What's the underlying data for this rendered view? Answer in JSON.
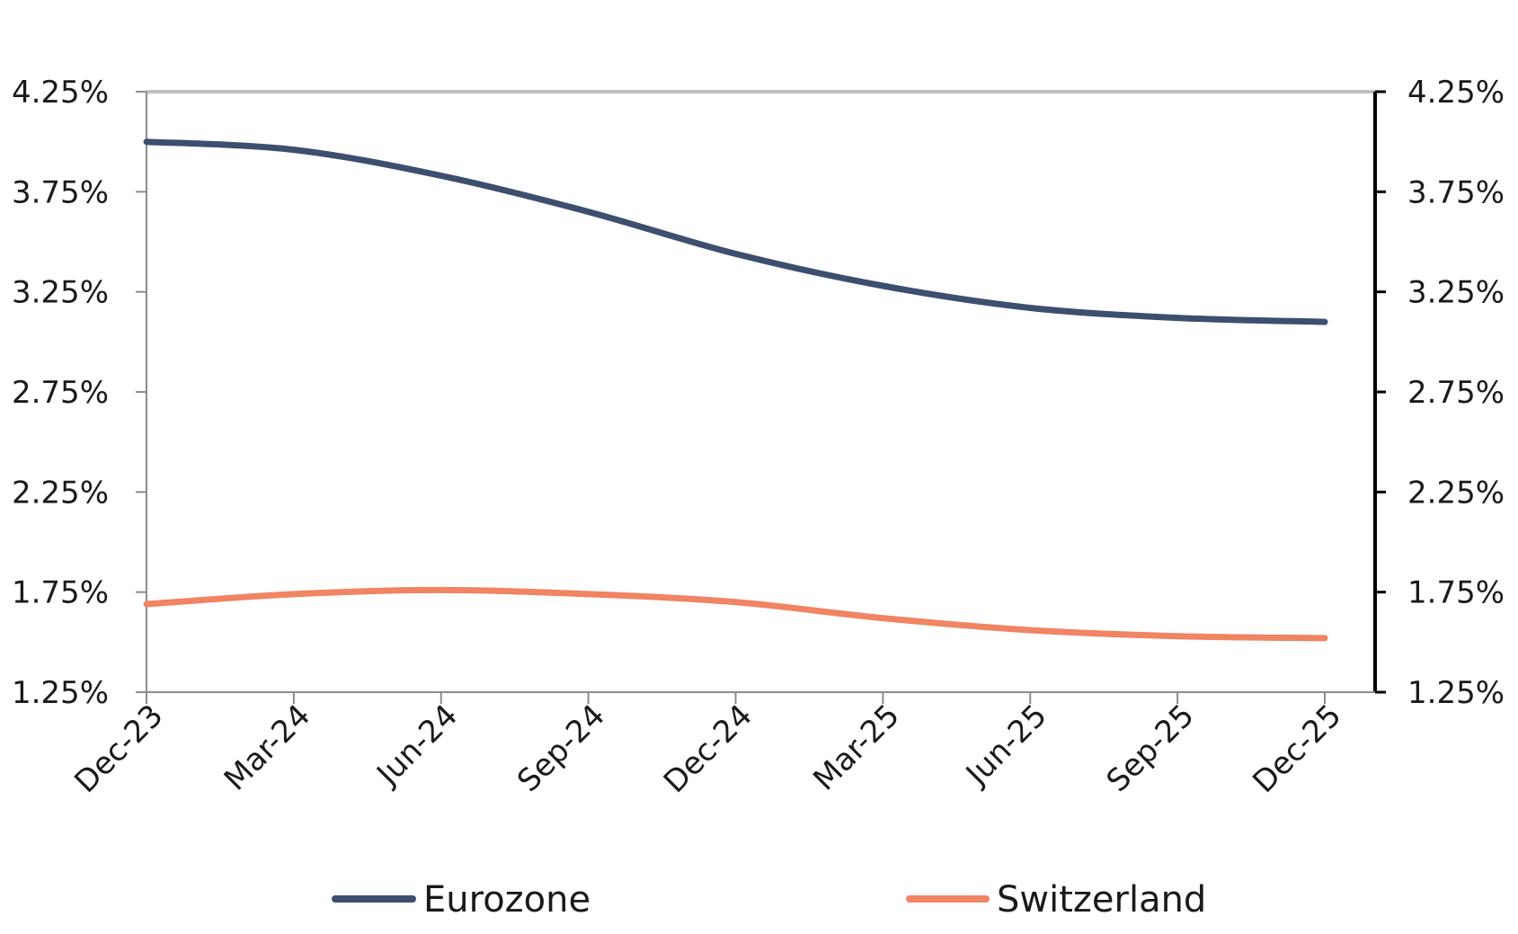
{
  "chart_data": {
    "type": "line",
    "title": "",
    "xlabel": "",
    "ylabel": "",
    "categories": [
      "Dec-23",
      "Mar-24",
      "Jun-24",
      "Sep-24",
      "Dec-24",
      "Mar-25",
      "Jun-25",
      "Sep-25",
      "Dec-25"
    ],
    "ylim": [
      1.25,
      4.25
    ],
    "y_ticks": [
      "4.25%",
      "3.75%",
      "3.25%",
      "2.75%",
      "2.25%",
      "1.75%",
      "1.25%"
    ],
    "y_tick_values": [
      4.25,
      3.75,
      3.25,
      2.75,
      2.25,
      1.75,
      1.25
    ],
    "y_axis_right_ticks": [
      "4.25%",
      "3.75%",
      "3.25%",
      "2.75%",
      "2.25%",
      "1.75%",
      "1.25%"
    ],
    "grid": false,
    "legend_position": "bottom",
    "series": [
      {
        "name": "Eurozone",
        "color": "#3d4f6e",
        "values": [
          4.0,
          3.96,
          3.83,
          3.65,
          3.44,
          3.28,
          3.17,
          3.12,
          3.1
        ]
      },
      {
        "name": "Switzerland",
        "color": "#f08463",
        "values": [
          1.69,
          1.74,
          1.76,
          1.74,
          1.7,
          1.62,
          1.56,
          1.53,
          1.52
        ]
      }
    ]
  }
}
